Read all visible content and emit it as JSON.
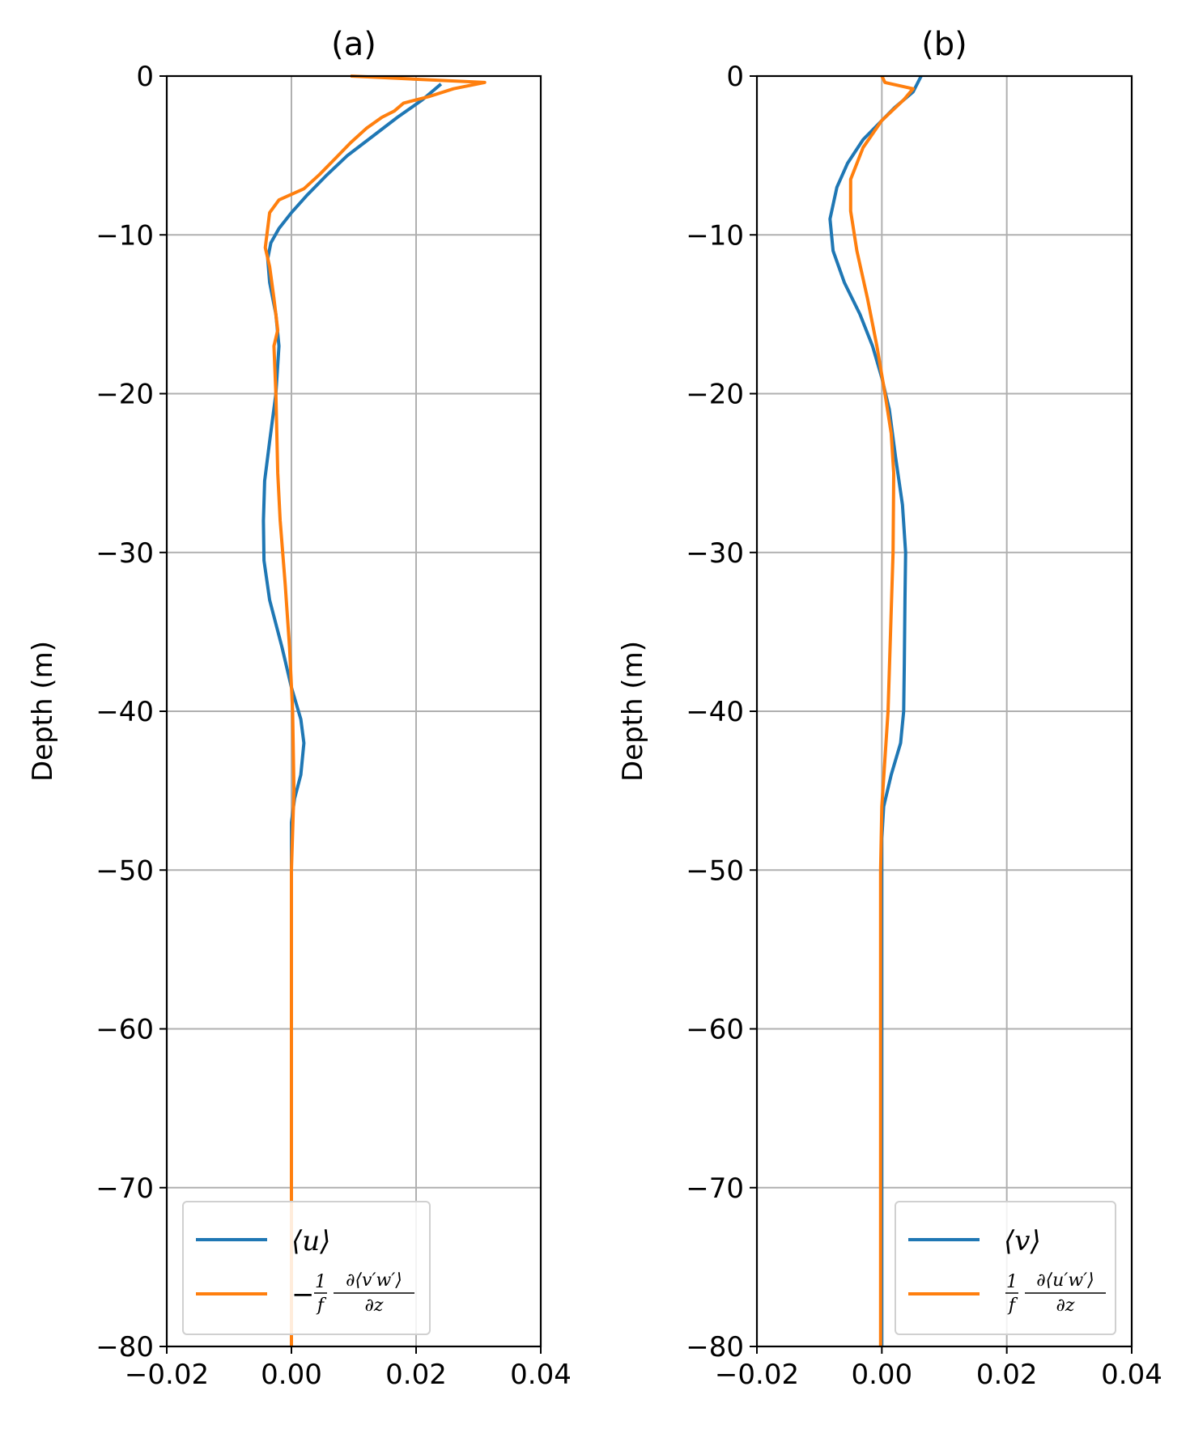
{
  "chart_data": [
    {
      "type": "line",
      "title": "(a)",
      "xlabel": "",
      "ylabel": "Depth (m)",
      "xlim": [
        -0.02,
        0.04
      ],
      "ylim": [
        -80,
        0
      ],
      "xticks": [
        "−0.02",
        "0.00",
        "0.02",
        "0.04"
      ],
      "xtick_values": [
        -0.02,
        0.0,
        0.02,
        0.04
      ],
      "yticks": [
        "0",
        "−10",
        "−20",
        "−30",
        "−40",
        "−50",
        "−60",
        "−70",
        "−80"
      ],
      "ytick_values": [
        0,
        -10,
        -20,
        -30,
        -40,
        -50,
        -60,
        -70,
        -80
      ],
      "grid": true,
      "legend_position": "lower-left",
      "legend": {
        "blue": "⟨u⟩",
        "orange_prefix": "−",
        "orange_frac1_num": "1",
        "orange_frac1_den": "f",
        "orange_frac2_num": "∂⟨v′w′⟩",
        "orange_frac2_den": "∂z"
      },
      "series": [
        {
          "color": "#1f77b4",
          "points": [
            [
              0.024,
              -0.5
            ],
            [
              0.021,
              -1.5
            ],
            [
              0.017,
              -2.6
            ],
            [
              0.013,
              -3.8
            ],
            [
              0.009,
              -5
            ],
            [
              0.0055,
              -6.3
            ],
            [
              0.0025,
              -7.5
            ],
            [
              0.0,
              -8.6
            ],
            [
              -0.002,
              -9.6
            ],
            [
              -0.0033,
              -10.5
            ],
            [
              -0.0038,
              -11.5
            ],
            [
              -0.0035,
              -13
            ],
            [
              -0.0025,
              -15
            ],
            [
              -0.002,
              -17
            ],
            [
              -0.0025,
              -20
            ],
            [
              -0.0035,
              -23
            ],
            [
              -0.0043,
              -25.5
            ],
            [
              -0.0045,
              -28
            ],
            [
              -0.0044,
              -30.5
            ],
            [
              -0.0035,
              -33
            ],
            [
              -0.0015,
              -36
            ],
            [
              0.0,
              -38.5
            ],
            [
              0.0015,
              -40.5
            ],
            [
              0.002,
              -42
            ],
            [
              0.0015,
              -44
            ],
            [
              0.0005,
              -45.5
            ],
            [
              0.0,
              -47
            ],
            [
              0.0,
              -50
            ],
            [
              0.0,
              -80
            ]
          ]
        },
        {
          "color": "#ff7f0e",
          "points": [
            [
              0.0095,
              0
            ],
            [
              0.031,
              -0.4
            ],
            [
              0.026,
              -0.8
            ],
            [
              0.022,
              -1.3
            ],
            [
              0.018,
              -1.7
            ],
            [
              0.0165,
              -2.2
            ],
            [
              0.0145,
              -2.6
            ],
            [
              0.012,
              -3.3
            ],
            [
              0.0095,
              -4.2
            ],
            [
              0.007,
              -5.2
            ],
            [
              0.0045,
              -6.2
            ],
            [
              0.002,
              -7.1
            ],
            [
              -0.002,
              -7.8
            ],
            [
              -0.0035,
              -8.6
            ],
            [
              -0.0042,
              -10.8
            ],
            [
              -0.0035,
              -12
            ],
            [
              -0.0028,
              -14
            ],
            [
              -0.0022,
              -16
            ],
            [
              -0.0028,
              -17
            ],
            [
              -0.0025,
              -20
            ],
            [
              -0.0022,
              -25
            ],
            [
              -0.0018,
              -28
            ],
            [
              -0.001,
              -32
            ],
            [
              -0.0003,
              -36
            ],
            [
              0.0002,
              -40
            ],
            [
              0.0004,
              -45
            ],
            [
              0.0,
              -50
            ],
            [
              0.0,
              -80
            ]
          ]
        }
      ]
    },
    {
      "type": "line",
      "title": "(b)",
      "xlabel": "",
      "ylabel": "Depth (m)",
      "xlim": [
        -0.02,
        0.04
      ],
      "ylim": [
        -80,
        0
      ],
      "xticks": [
        "−0.02",
        "0.00",
        "0.02",
        "0.04"
      ],
      "xtick_values": [
        -0.02,
        0.0,
        0.02,
        0.04
      ],
      "yticks": [
        "0",
        "−10",
        "−20",
        "−30",
        "−40",
        "−50",
        "−60",
        "−70",
        "−80"
      ],
      "ytick_values": [
        0,
        -10,
        -20,
        -30,
        -40,
        -50,
        -60,
        -70,
        -80
      ],
      "grid": true,
      "legend_position": "lower-right",
      "legend": {
        "blue": "⟨v⟩",
        "orange_prefix": "",
        "orange_frac1_num": "1",
        "orange_frac1_den": "f",
        "orange_frac2_num": "∂⟨u′w′⟩",
        "orange_frac2_den": "∂z"
      },
      "series": [
        {
          "color": "#1f77b4",
          "points": [
            [
              0.0063,
              0
            ],
            [
              0.005,
              -1
            ],
            [
              0.002,
              -2
            ],
            [
              -0.0005,
              -3
            ],
            [
              -0.003,
              -4
            ],
            [
              -0.0055,
              -5.5
            ],
            [
              -0.0072,
              -7
            ],
            [
              -0.0083,
              -9
            ],
            [
              -0.0078,
              -11
            ],
            [
              -0.006,
              -13
            ],
            [
              -0.0035,
              -15
            ],
            [
              -0.0015,
              -17
            ],
            [
              0.0,
              -19
            ],
            [
              0.0012,
              -21
            ],
            [
              0.0022,
              -24
            ],
            [
              0.0033,
              -27
            ],
            [
              0.0038,
              -30
            ],
            [
              0.0037,
              -33
            ],
            [
              0.0036,
              -37
            ],
            [
              0.0035,
              -40
            ],
            [
              0.003,
              -42
            ],
            [
              0.0015,
              -44
            ],
            [
              0.0003,
              -46
            ],
            [
              0.0,
              -48
            ],
            [
              0.0,
              -50
            ],
            [
              0.0,
              -80
            ]
          ]
        },
        {
          "color": "#ff7f0e",
          "points": [
            [
              0.0,
              0
            ],
            [
              0.0005,
              -0.4
            ],
            [
              0.005,
              -0.8
            ],
            [
              0.0035,
              -1.5
            ],
            [
              0.0,
              -2.8
            ],
            [
              -0.003,
              -4.5
            ],
            [
              -0.005,
              -6.5
            ],
            [
              -0.005,
              -8.5
            ],
            [
              -0.004,
              -11
            ],
            [
              -0.0023,
              -14
            ],
            [
              -0.0008,
              -17
            ],
            [
              0.0005,
              -20
            ],
            [
              0.0015,
              -22.5
            ],
            [
              0.0019,
              -25
            ],
            [
              0.0018,
              -30
            ],
            [
              0.0014,
              -35
            ],
            [
              0.001,
              -40
            ],
            [
              0.0,
              -46
            ],
            [
              -0.0002,
              -50
            ],
            [
              -0.0002,
              -80
            ]
          ]
        }
      ]
    }
  ]
}
